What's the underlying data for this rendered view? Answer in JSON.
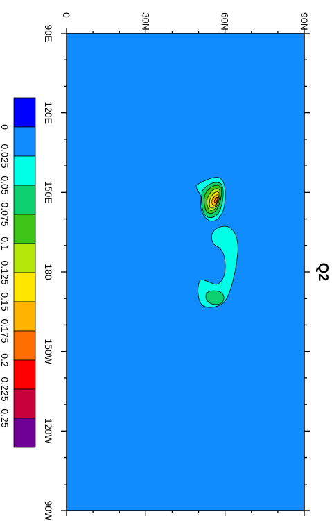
{
  "title": "Q2",
  "map": {
    "x_axis": {
      "ticks": [
        "90E",
        "120E",
        "150E",
        "180",
        "150W",
        "120W",
        "90W"
      ]
    },
    "y_axis": {
      "ticks": [
        "0",
        "30N",
        "60N",
        "90N"
      ]
    },
    "background_color": "#118cff"
  },
  "colorbar": {
    "labels": [
      "0",
      "0.025",
      "0.05",
      "0.075",
      "0.1",
      "0.125",
      "0.15",
      "0.175",
      "0.2",
      "0.225",
      "0.25"
    ],
    "colors": [
      "#0000ff",
      "#118cff",
      "#00ffe6",
      "#0fd070",
      "#3fc418",
      "#b4e60a",
      "#ffe600",
      "#ffb400",
      "#ff6e00",
      "#ff0000",
      "#c8003c",
      "#6e0096"
    ]
  }
}
